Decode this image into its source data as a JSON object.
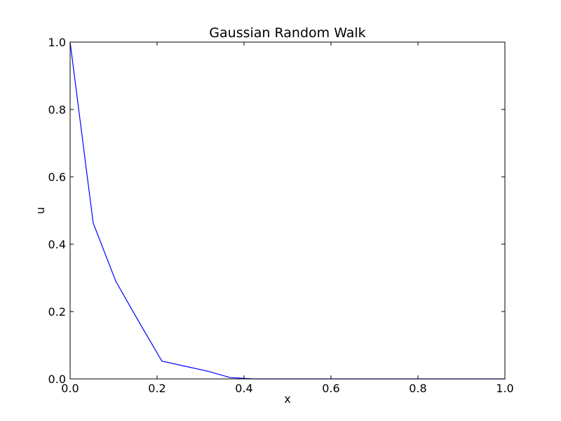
{
  "chart_data": {
    "type": "line",
    "title": "Gaussian Random Walk",
    "xlabel": "x",
    "ylabel": "u",
    "xlim": [
      0.0,
      1.0
    ],
    "ylim": [
      0.0,
      1.0
    ],
    "x_ticks": [
      "0.0",
      "0.2",
      "0.4",
      "0.6",
      "0.8",
      "1.0"
    ],
    "y_ticks": [
      "0.0",
      "0.2",
      "0.4",
      "0.6",
      "0.8",
      "1.0"
    ],
    "grid": false,
    "series": [
      {
        "color": "#0000ff",
        "x": [
          0.0,
          0.053,
          0.105,
          0.158,
          0.211,
          0.263,
          0.316,
          0.368,
          0.421,
          0.474,
          0.526,
          0.579,
          0.632,
          0.684,
          0.737,
          0.789,
          0.842,
          0.895,
          0.947,
          1.0
        ],
        "y": [
          1.0,
          0.463,
          0.29,
          0.17,
          0.053,
          0.038,
          0.023,
          0.004,
          0.0,
          0.0,
          0.0,
          0.0,
          0.0,
          0.0,
          0.0,
          0.0,
          0.0,
          0.0,
          0.0,
          0.0
        ]
      }
    ]
  }
}
